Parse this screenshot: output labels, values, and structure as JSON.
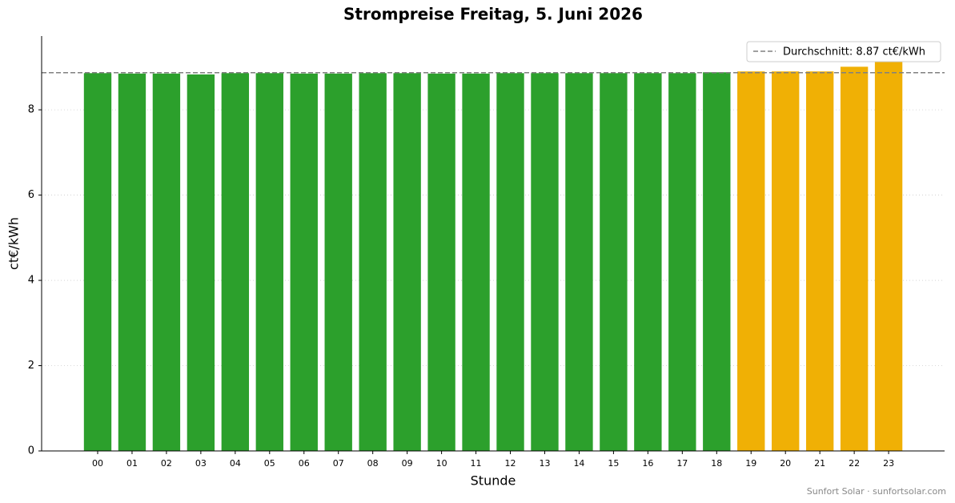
{
  "chart_data": {
    "type": "bar",
    "title": "Strompreise Freitag, 5. Juni 2026",
    "x_label": "Stunde",
    "y_label": "ct€/kWh",
    "categories": [
      "00",
      "01",
      "02",
      "03",
      "04",
      "05",
      "06",
      "07",
      "08",
      "09",
      "10",
      "11",
      "12",
      "13",
      "14",
      "15",
      "16",
      "17",
      "18",
      "19",
      "20",
      "21",
      "22",
      "23"
    ],
    "values": [
      8.86,
      8.85,
      8.85,
      8.83,
      8.86,
      8.86,
      8.85,
      8.85,
      8.86,
      8.86,
      8.85,
      8.85,
      8.86,
      8.86,
      8.86,
      8.86,
      8.86,
      8.86,
      8.88,
      8.9,
      8.9,
      8.9,
      9.01,
      9.13
    ],
    "colors": [
      "#2ca02c",
      "#2ca02c",
      "#2ca02c",
      "#2ca02c",
      "#2ca02c",
      "#2ca02c",
      "#2ca02c",
      "#2ca02c",
      "#2ca02c",
      "#2ca02c",
      "#2ca02c",
      "#2ca02c",
      "#2ca02c",
      "#2ca02c",
      "#2ca02c",
      "#2ca02c",
      "#2ca02c",
      "#2ca02c",
      "#2ca02c",
      "#f0b005",
      "#f0b005",
      "#f0b005",
      "#f0b005",
      "#f0b005"
    ],
    "average": 8.87,
    "average_label": "Durchschnitt: 8.87 ct€/kWh",
    "average_color": "#808080",
    "ylim": [
      0,
      9.73
    ],
    "yticks": [
      0,
      2,
      4,
      6,
      8
    ],
    "grid": true,
    "legend": "upper right",
    "footer": "Sunfort Solar · sunfortsolar.com"
  }
}
